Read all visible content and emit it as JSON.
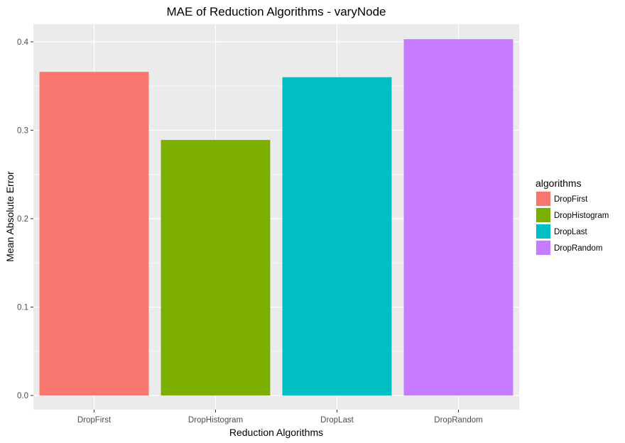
{
  "chart_data": {
    "type": "bar",
    "title": "MAE of Reduction Algorithms - varyNode",
    "xlabel": "Reduction Algorithms",
    "ylabel": "Mean Absolute Error",
    "categories": [
      "DropFirst",
      "DropHistogram",
      "DropLast",
      "DropRandom"
    ],
    "values": [
      0.366,
      0.289,
      0.36,
      0.403
    ],
    "colors": [
      "#F8766D",
      "#7CAE00",
      "#00BFC4",
      "#C77CFF"
    ],
    "ylim": [
      -0.016,
      0.42
    ],
    "yticks": [
      0.0,
      0.1,
      0.2,
      0.3,
      0.4
    ],
    "ytick_labels": [
      "0.0",
      "0.1",
      "0.2",
      "0.3",
      "0.4"
    ],
    "grid": true,
    "panel_background": "#EBEBEB",
    "legend": {
      "title": "algorithms",
      "position": "right",
      "entries": [
        "DropFirst",
        "DropHistogram",
        "DropLast",
        "DropRandom"
      ]
    }
  }
}
